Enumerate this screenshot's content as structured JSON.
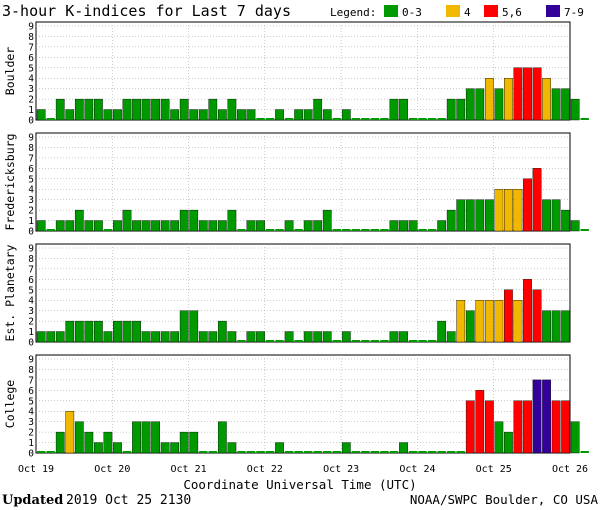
{
  "chart_data": {
    "type": "bar",
    "title": "3-hour K-indices for Last 7 days",
    "legend": {
      "title": "Legend:",
      "placement": "top-right",
      "entries": [
        {
          "label": "0-3",
          "color": "#009900"
        },
        {
          "label": "4",
          "color": "#f0b800"
        },
        {
          "label": "5,6",
          "color": "#ff0000"
        },
        {
          "label": "7-9",
          "color": "#330099"
        }
      ]
    },
    "xlabel": "Coordinate Universal Time (UTC)",
    "x_ticks": [
      "Oct 19",
      "Oct 20",
      "Oct 21",
      "Oct 22",
      "Oct 23",
      "Oct 24",
      "Oct 25",
      "Oct 26"
    ],
    "y_ticks": [
      "0",
      "1",
      "2",
      "3",
      "4",
      "5",
      "6",
      "7",
      "8",
      "9"
    ],
    "ylim": [
      0,
      9
    ],
    "grid": true,
    "series": [
      {
        "name": "Boulder",
        "values": [
          1,
          0,
          2,
          1,
          2,
          2,
          2,
          1,
          1,
          2,
          2,
          2,
          2,
          2,
          1,
          2,
          1,
          1,
          2,
          1,
          2,
          1,
          1,
          0,
          0,
          1,
          0,
          1,
          1,
          2,
          1,
          0,
          1,
          0,
          0,
          0,
          0,
          2,
          2,
          0,
          0,
          0,
          0,
          2,
          2,
          3,
          3,
          4,
          3,
          4,
          5,
          5,
          5,
          4,
          3,
          3,
          2,
          0
        ]
      },
      {
        "name": "Fredericksburg",
        "values": [
          1,
          0,
          1,
          1,
          2,
          1,
          1,
          0,
          1,
          2,
          1,
          1,
          1,
          1,
          1,
          2,
          2,
          1,
          1,
          1,
          2,
          0,
          1,
          1,
          0,
          0,
          1,
          0,
          1,
          1,
          2,
          0,
          0,
          0,
          0,
          0,
          0,
          1,
          1,
          1,
          0,
          0,
          1,
          2,
          3,
          3,
          3,
          3,
          4,
          4,
          4,
          5,
          6,
          3,
          3,
          2,
          1,
          0
        ]
      },
      {
        "name": "Est. Planetary",
        "values": [
          1,
          1,
          1,
          2,
          2,
          2,
          2,
          1,
          2,
          2,
          2,
          1,
          1,
          1,
          1,
          3,
          3,
          1,
          1,
          2,
          1,
          0,
          1,
          1,
          0,
          0,
          1,
          0,
          1,
          1,
          1,
          0,
          1,
          0,
          0,
          0,
          0,
          1,
          1,
          0,
          0,
          0,
          2,
          1,
          4,
          3,
          4,
          4,
          4,
          5,
          4,
          6,
          5,
          3,
          3,
          3
        ]
      },
      {
        "name": "College",
        "values": [
          0,
          0,
          2,
          4,
          3,
          2,
          1,
          2,
          1,
          0,
          3,
          3,
          3,
          1,
          1,
          2,
          2,
          0,
          0,
          3,
          1,
          0,
          0,
          0,
          0,
          1,
          0,
          0,
          0,
          0,
          0,
          0,
          1,
          0,
          0,
          0,
          0,
          0,
          1,
          0,
          0,
          0,
          0,
          0,
          0,
          5,
          6,
          5,
          3,
          2,
          5,
          5,
          7,
          7,
          5,
          5,
          3,
          0
        ]
      }
    ],
    "footer": {
      "updated_label": "Updated",
      "updated_value": "2019 Oct 25 2130",
      "source": "NOAA/SWPC Boulder, CO USA"
    }
  }
}
